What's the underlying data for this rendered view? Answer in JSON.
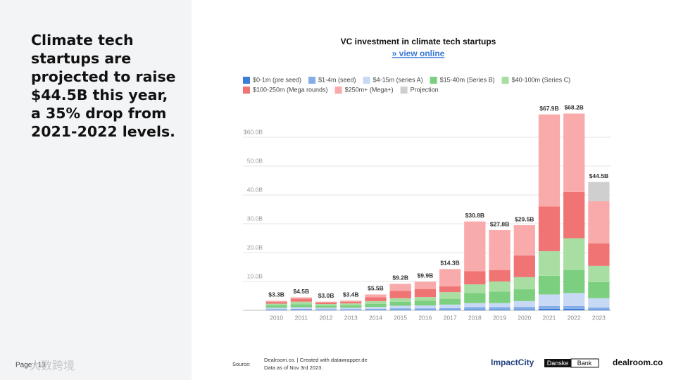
{
  "slide": {
    "headline": "Climate tech startups are projected to raise $44.5B this year, a 35% drop from 2021-2022 levels.",
    "page": "Page / 13",
    "watermark": "大数跨境"
  },
  "chart_data": {
    "type": "bar",
    "stacked": true,
    "title": "VC investment in climate tech startups",
    "link": "» view online",
    "categories": [
      "2010",
      "2011",
      "2012",
      "2013",
      "2014",
      "2015",
      "2016",
      "2017",
      "2018",
      "2019",
      "2020",
      "2021",
      "2022",
      "2023"
    ],
    "series": [
      {
        "name": "$0-1m (pre seed)",
        "color": "#3b7dd8",
        "values": [
          0.1,
          0.1,
          0.1,
          0.1,
          0.1,
          0.2,
          0.2,
          0.2,
          0.3,
          0.3,
          0.3,
          0.5,
          0.5,
          0.3
        ]
      },
      {
        "name": "$1-4m (seed)",
        "color": "#86aee6",
        "values": [
          0.3,
          0.4,
          0.3,
          0.3,
          0.4,
          0.5,
          0.5,
          0.6,
          0.8,
          0.8,
          0.9,
          1.0,
          1.0,
          0.7
        ]
      },
      {
        "name": "$4-15m (series A)",
        "color": "#c8d9f6",
        "values": [
          0.5,
          0.6,
          0.5,
          0.5,
          0.7,
          0.9,
          1.0,
          1.2,
          1.4,
          1.4,
          2.0,
          4.0,
          4.5,
          3.2
        ]
      },
      {
        "name": "$15-40m (Series B)",
        "color": "#7ccf7e",
        "values": [
          0.8,
          1.0,
          0.7,
          0.8,
          1.0,
          1.4,
          1.6,
          2.0,
          3.5,
          4.0,
          4.1,
          6.5,
          8.0,
          5.6
        ]
      },
      {
        "name": "$40-100m (Series C)",
        "color": "#a9dea3",
        "values": [
          0.6,
          0.9,
          0.6,
          0.7,
          1.0,
          1.2,
          1.3,
          2.3,
          3.0,
          3.5,
          4.2,
          8.5,
          11.0,
          5.6
        ]
      },
      {
        "name": "$100-250m (Mega rounds)",
        "color": "#f07474",
        "values": [
          0.6,
          1.0,
          0.5,
          0.6,
          1.3,
          2.5,
          2.8,
          2.0,
          4.6,
          3.9,
          7.5,
          15.5,
          16.0,
          7.8
        ]
      },
      {
        "name": "$250m+ (Mega+)",
        "color": "#f9aaaa",
        "values": [
          0.4,
          0.5,
          0.3,
          0.4,
          1.0,
          2.5,
          2.5,
          6.0,
          17.2,
          13.9,
          10.5,
          31.9,
          27.2,
          14.6
        ]
      },
      {
        "name": "Projection",
        "color": "#cfcfcf",
        "values": [
          null,
          null,
          null,
          null,
          null,
          null,
          null,
          null,
          null,
          null,
          null,
          null,
          null,
          6.7
        ]
      }
    ],
    "totals": {
      "values": [
        3.3,
        4.5,
        3.0,
        3.4,
        5.5,
        9.2,
        9.9,
        14.3,
        30.8,
        27.8,
        29.5,
        67.9,
        68.2,
        44.5
      ],
      "value_labels": [
        "$3.3B",
        "$4.5B",
        "$3.0B",
        "$3.4B",
        "$5.5B",
        "$9.2B",
        "$9.9B",
        "$14.3B",
        "$30.8B",
        "$27.8B",
        "$29.5B",
        "$67.9B",
        "$68.2B",
        "$44.5B"
      ]
    },
    "ylim": [
      0,
      70
    ],
    "yticks": [
      {
        "value": 10,
        "label": "10.0B"
      },
      {
        "value": 20,
        "label": "20.0B"
      },
      {
        "value": 30,
        "label": "30.0B"
      },
      {
        "value": 40,
        "label": "40.0B"
      },
      {
        "value": 50,
        "label": "50.0B"
      },
      {
        "value": 60,
        "label": "$60.0B"
      }
    ],
    "grid": true
  },
  "footer": {
    "source_label": "Source:",
    "source": "Dealroom.co. | Created with datawrapper.de",
    "date": "Data as of Nov 3rd 2023.",
    "logos": [
      "ImpactCity",
      "Danske",
      "Bank",
      "dealroom.co"
    ]
  }
}
